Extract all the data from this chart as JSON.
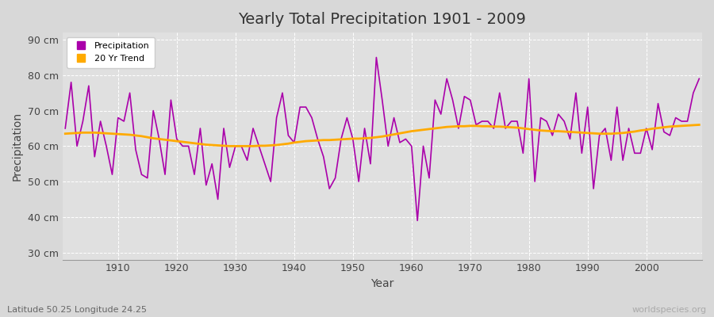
{
  "title": "Yearly Total Precipitation 1901 - 2009",
  "xlabel": "Year",
  "ylabel": "Precipitation",
  "subtitle": "Latitude 50.25 Longitude 24.25",
  "watermark": "worldspecies.org",
  "bg_color": "#d8d8d8",
  "plot_bg_color": "#e0e0e0",
  "precip_color": "#aa00aa",
  "trend_color": "#ffaa00",
  "ylim": [
    28,
    92
  ],
  "yticks": [
    30,
    40,
    50,
    60,
    70,
    80,
    90
  ],
  "xlim": [
    1900.5,
    2009.5
  ],
  "years": [
    1901,
    1902,
    1903,
    1904,
    1905,
    1906,
    1907,
    1908,
    1909,
    1910,
    1911,
    1912,
    1913,
    1914,
    1915,
    1916,
    1917,
    1918,
    1919,
    1920,
    1921,
    1922,
    1923,
    1924,
    1925,
    1926,
    1927,
    1928,
    1929,
    1930,
    1931,
    1932,
    1933,
    1934,
    1935,
    1936,
    1937,
    1938,
    1939,
    1940,
    1941,
    1942,
    1943,
    1944,
    1945,
    1946,
    1947,
    1948,
    1949,
    1950,
    1951,
    1952,
    1953,
    1954,
    1955,
    1956,
    1957,
    1958,
    1959,
    1960,
    1961,
    1962,
    1963,
    1964,
    1965,
    1966,
    1967,
    1968,
    1969,
    1970,
    1971,
    1972,
    1973,
    1974,
    1975,
    1976,
    1977,
    1978,
    1979,
    1980,
    1981,
    1982,
    1983,
    1984,
    1985,
    1986,
    1987,
    1988,
    1989,
    1990,
    1991,
    1992,
    1993,
    1994,
    1995,
    1996,
    1997,
    1998,
    1999,
    2000,
    2001,
    2002,
    2003,
    2004,
    2005,
    2006,
    2007,
    2008,
    2009
  ],
  "precip": [
    65,
    78,
    60,
    67,
    77,
    57,
    67,
    60,
    52,
    68,
    67,
    75,
    59,
    52,
    51,
    70,
    62,
    52,
    73,
    62,
    60,
    60,
    52,
    65,
    49,
    55,
    45,
    65,
    54,
    60,
    60,
    56,
    65,
    60,
    55,
    50,
    68,
    75,
    63,
    61,
    71,
    71,
    68,
    62,
    57,
    48,
    51,
    62,
    68,
    62,
    50,
    65,
    55,
    85,
    73,
    60,
    68,
    61,
    62,
    60,
    39,
    60,
    51,
    73,
    69,
    79,
    73,
    65,
    74,
    73,
    66,
    67,
    67,
    65,
    75,
    65,
    67,
    67,
    58,
    79,
    50,
    68,
    67,
    63,
    69,
    67,
    62,
    75,
    58,
    71,
    48,
    63,
    65,
    56,
    71,
    56,
    65,
    58,
    58,
    65,
    59,
    72,
    64,
    63,
    68,
    67,
    67,
    75,
    79
  ],
  "trend": [
    63.5,
    63.6,
    63.7,
    63.8,
    63.8,
    63.8,
    63.7,
    63.6,
    63.5,
    63.4,
    63.3,
    63.2,
    63.0,
    62.8,
    62.5,
    62.2,
    62.0,
    61.8,
    61.6,
    61.4,
    61.2,
    61.0,
    60.8,
    60.6,
    60.4,
    60.3,
    60.2,
    60.1,
    60.0,
    60.0,
    60.0,
    60.0,
    60.0,
    60.1,
    60.1,
    60.2,
    60.3,
    60.5,
    60.7,
    61.0,
    61.2,
    61.4,
    61.5,
    61.6,
    61.7,
    61.7,
    61.8,
    61.9,
    62.0,
    62.1,
    62.1,
    62.2,
    62.3,
    62.5,
    62.7,
    63.0,
    63.3,
    63.6,
    63.9,
    64.2,
    64.4,
    64.6,
    64.8,
    65.0,
    65.2,
    65.4,
    65.5,
    65.6,
    65.6,
    65.7,
    65.7,
    65.6,
    65.6,
    65.5,
    65.5,
    65.4,
    65.3,
    65.2,
    65.0,
    64.8,
    64.6,
    64.4,
    64.3,
    64.2,
    64.2,
    64.1,
    64.0,
    63.9,
    63.8,
    63.7,
    63.6,
    63.5,
    63.5,
    63.5,
    63.6,
    63.7,
    63.9,
    64.1,
    64.4,
    64.6,
    64.9,
    65.1,
    65.3,
    65.5,
    65.6,
    65.7,
    65.8,
    65.9,
    66.0
  ],
  "xticks": [
    1910,
    1920,
    1930,
    1940,
    1950,
    1960,
    1970,
    1980,
    1990,
    2000
  ],
  "title_fontsize": 14,
  "tick_fontsize": 9,
  "label_fontsize": 10,
  "subtitle_fontsize": 8,
  "watermark_fontsize": 8
}
